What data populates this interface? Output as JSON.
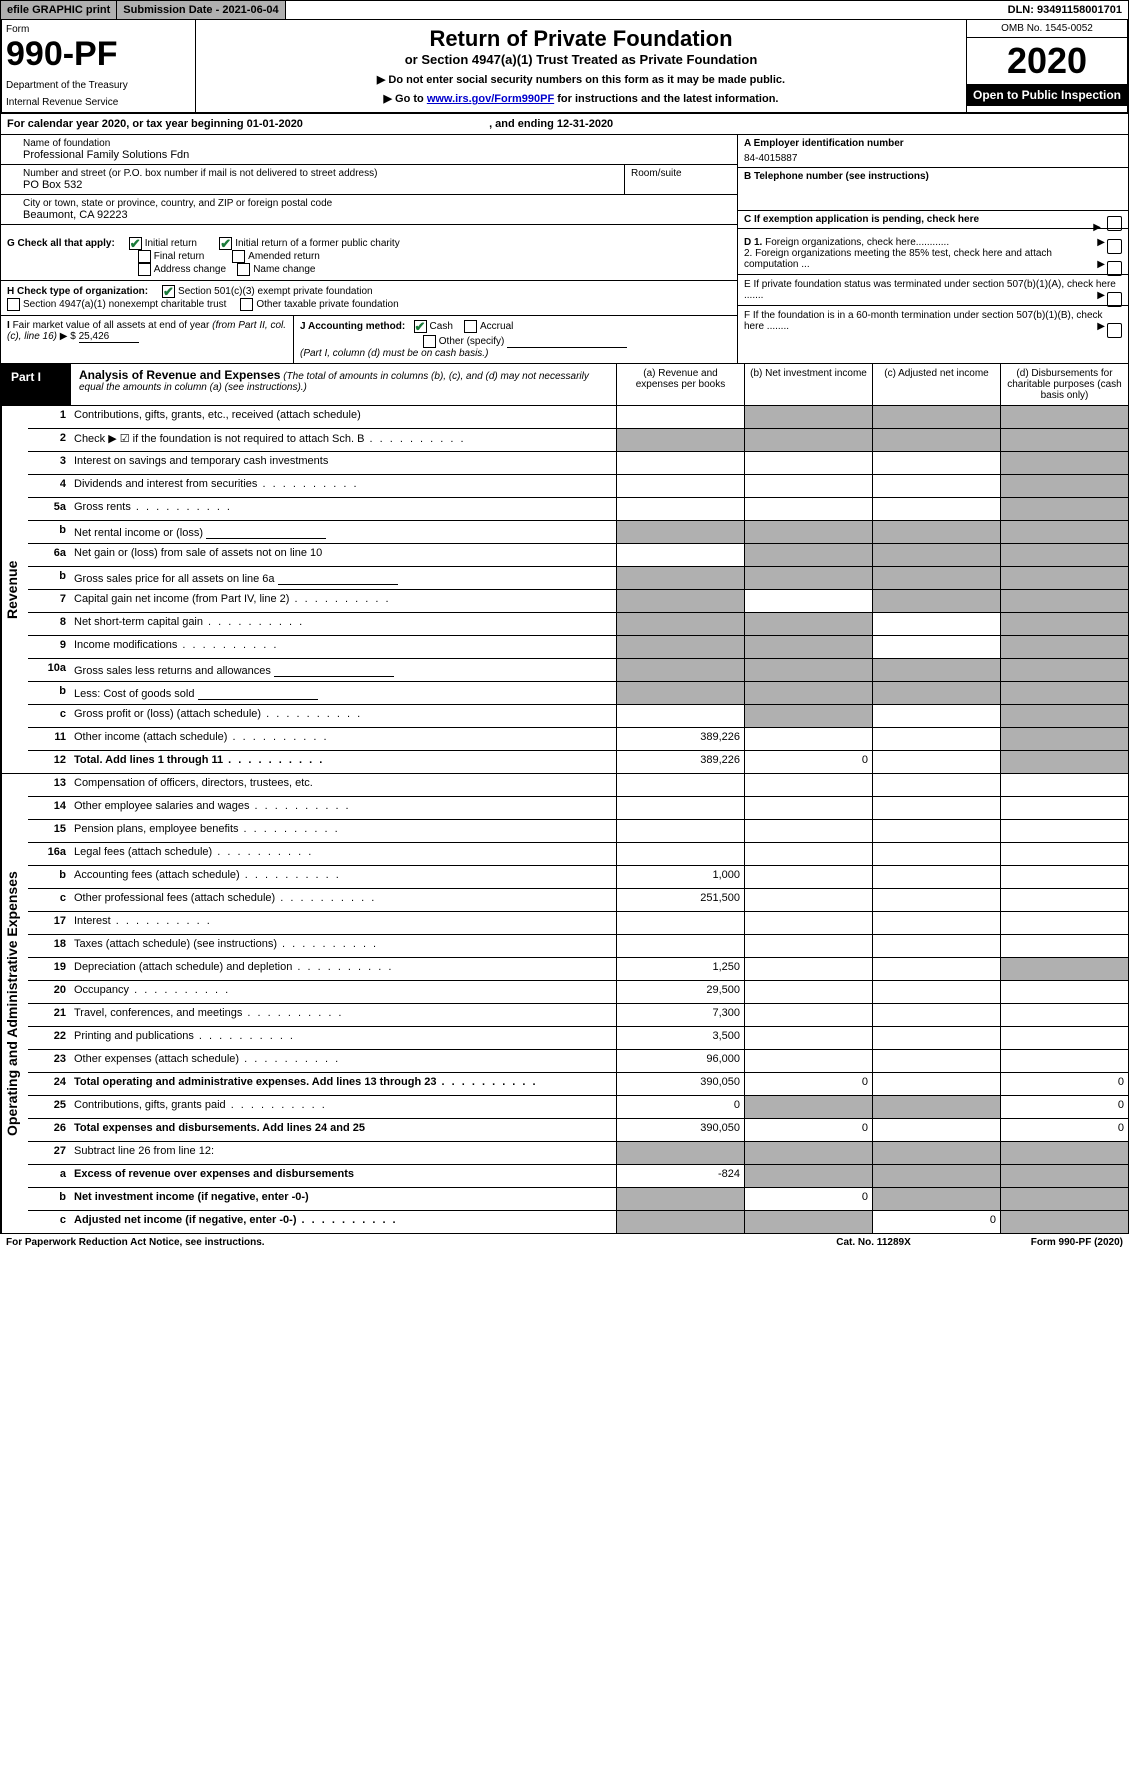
{
  "topbar": {
    "efile": "efile GRAPHIC print",
    "subdate_label": "Submission Date - ",
    "subdate": "2021-06-04",
    "dln_label": "DLN: ",
    "dln": "93491158001701"
  },
  "header": {
    "form_word": "Form",
    "form_number": "990-PF",
    "dept1": "Department of the Treasury",
    "dept2": "Internal Revenue Service",
    "title": "Return of Private Foundation",
    "subtitle": "or Section 4947(a)(1) Trust Treated as Private Foundation",
    "instr1": "▶ Do not enter social security numbers on this form as it may be made public.",
    "instr2_pre": "▶ Go to ",
    "instr2_link": "www.irs.gov/Form990PF",
    "instr2_post": " for instructions and the latest information.",
    "omb": "OMB No. 1545-0052",
    "year": "2020",
    "open": "Open to Public Inspection"
  },
  "calyear": {
    "text_pre": "For calendar year 2020, or tax year beginning ",
    "begin": "01-01-2020",
    "text_mid": " , and ending ",
    "end": "12-31-2020"
  },
  "entity": {
    "name_label": "Name of foundation",
    "name": "Professional Family Solutions Fdn",
    "addr_label": "Number and street (or P.O. box number if mail is not delivered to street address)",
    "room_label": "Room/suite",
    "addr": "PO Box 532",
    "city_label": "City or town, state or province, country, and ZIP or foreign postal code",
    "city": "Beaumont, CA  92223",
    "ein_label": "A Employer identification number",
    "ein": "84-4015887",
    "phone_label": "B Telephone number (see instructions)",
    "exempt_label": "C If exemption application is pending, check here"
  },
  "checks": {
    "g_label": "G Check all that apply:",
    "g_initial": "Initial return",
    "g_former": "Initial return of a former public charity",
    "g_final": "Final return",
    "g_amended": "Amended return",
    "g_addr": "Address change",
    "g_name": "Name change",
    "h_label": "H Check type of organization:",
    "h_501c3": "Section 501(c)(3) exempt private foundation",
    "h_4947": "Section 4947(a)(1) nonexempt charitable trust",
    "h_other": "Other taxable private foundation",
    "i_label": "I Fair market value of all assets at end of year (from Part II, col. (c), line 16) ▶ $",
    "i_value": "25,426",
    "j_label": "J Accounting method:",
    "j_cash": "Cash",
    "j_accrual": "Accrual",
    "j_other": "Other (specify)",
    "j_note": "(Part I, column (d) must be on cash basis.)",
    "d1": "D 1. Foreign organizations, check here............",
    "d2": "2. Foreign organizations meeting the 85% test, check here and attach computation ...",
    "e": "E  If private foundation status was terminated under section 507(b)(1)(A), check here .......",
    "f": "F  If the foundation is in a 60-month termination under section 507(b)(1)(B), check here ........"
  },
  "part1": {
    "label": "Part I",
    "title": "Analysis of Revenue and Expenses",
    "note": "(The total of amounts in columns (b), (c), and (d) may not necessarily equal the amounts in column (a) (see instructions).)",
    "col_a": "(a)   Revenue and expenses per books",
    "col_b": "(b)  Net investment income",
    "col_c": "(c)  Adjusted net income",
    "col_d": "(d)  Disbursements for charitable purposes (cash basis only)"
  },
  "side": {
    "revenue": "Revenue",
    "expenses": "Operating and Administrative Expenses"
  },
  "rows": [
    {
      "n": "1",
      "d": "Contributions, gifts, grants, etc., received (attach schedule)",
      "a": "",
      "b": "g",
      "c": "g",
      "dd": "g"
    },
    {
      "n": "2",
      "d": "Check ▶ ☑ if the foundation is not required to attach Sch. B",
      "dots": true,
      "a": "g",
      "b": "g",
      "c": "g",
      "dd": "g"
    },
    {
      "n": "3",
      "d": "Interest on savings and temporary cash investments",
      "a": "",
      "b": "",
      "c": "",
      "dd": "g"
    },
    {
      "n": "4",
      "d": "Dividends and interest from securities",
      "dots": true,
      "a": "",
      "b": "",
      "c": "",
      "dd": "g"
    },
    {
      "n": "5a",
      "d": "Gross rents",
      "dots": true,
      "a": "",
      "b": "",
      "c": "",
      "dd": "g"
    },
    {
      "n": "b",
      "d": "Net rental income or (loss)",
      "box": true,
      "a": "g",
      "b": "g",
      "c": "g",
      "dd": "g"
    },
    {
      "n": "6a",
      "d": "Net gain or (loss) from sale of assets not on line 10",
      "a": "",
      "b": "g",
      "c": "g",
      "dd": "g"
    },
    {
      "n": "b",
      "d": "Gross sales price for all assets on line 6a",
      "box": true,
      "a": "g",
      "b": "g",
      "c": "g",
      "dd": "g"
    },
    {
      "n": "7",
      "d": "Capital gain net income (from Part IV, line 2)",
      "dots": true,
      "a": "g",
      "b": "",
      "c": "g",
      "dd": "g"
    },
    {
      "n": "8",
      "d": "Net short-term capital gain",
      "dots": true,
      "a": "g",
      "b": "g",
      "c": "",
      "dd": "g"
    },
    {
      "n": "9",
      "d": "Income modifications",
      "dots": true,
      "a": "g",
      "b": "g",
      "c": "",
      "dd": "g"
    },
    {
      "n": "10a",
      "d": "Gross sales less returns and allowances",
      "box": true,
      "a": "g",
      "b": "g",
      "c": "g",
      "dd": "g"
    },
    {
      "n": "b",
      "d": "Less: Cost of goods sold",
      "dots": true,
      "box": true,
      "a": "g",
      "b": "g",
      "c": "g",
      "dd": "g"
    },
    {
      "n": "c",
      "d": "Gross profit or (loss) (attach schedule)",
      "dots": true,
      "a": "",
      "b": "g",
      "c": "",
      "dd": "g"
    },
    {
      "n": "11",
      "d": "Other income (attach schedule)",
      "dots": true,
      "a": "389,226",
      "b": "",
      "c": "",
      "dd": "g"
    },
    {
      "n": "12",
      "d": "Total. Add lines 1 through 11",
      "bold": true,
      "dots": true,
      "a": "389,226",
      "b": "0",
      "c": "",
      "dd": "g"
    }
  ],
  "exp_rows": [
    {
      "n": "13",
      "d": "Compensation of officers, directors, trustees, etc.",
      "a": "",
      "b": "",
      "c": "",
      "dd": ""
    },
    {
      "n": "14",
      "d": "Other employee salaries and wages",
      "dots": true,
      "a": "",
      "b": "",
      "c": "",
      "dd": ""
    },
    {
      "n": "15",
      "d": "Pension plans, employee benefits",
      "dots": true,
      "a": "",
      "b": "",
      "c": "",
      "dd": ""
    },
    {
      "n": "16a",
      "d": "Legal fees (attach schedule)",
      "dots": true,
      "a": "",
      "b": "",
      "c": "",
      "dd": ""
    },
    {
      "n": "b",
      "d": "Accounting fees (attach schedule)",
      "dots": true,
      "a": "1,000",
      "b": "",
      "c": "",
      "dd": ""
    },
    {
      "n": "c",
      "d": "Other professional fees (attach schedule)",
      "dots": true,
      "a": "251,500",
      "b": "",
      "c": "",
      "dd": ""
    },
    {
      "n": "17",
      "d": "Interest",
      "dots": true,
      "a": "",
      "b": "",
      "c": "",
      "dd": ""
    },
    {
      "n": "18",
      "d": "Taxes (attach schedule) (see instructions)",
      "dots": true,
      "a": "",
      "b": "",
      "c": "",
      "dd": ""
    },
    {
      "n": "19",
      "d": "Depreciation (attach schedule) and depletion",
      "dots": true,
      "a": "1,250",
      "b": "",
      "c": "",
      "dd": "g"
    },
    {
      "n": "20",
      "d": "Occupancy",
      "dots": true,
      "a": "29,500",
      "b": "",
      "c": "",
      "dd": ""
    },
    {
      "n": "21",
      "d": "Travel, conferences, and meetings",
      "dots": true,
      "a": "7,300",
      "b": "",
      "c": "",
      "dd": ""
    },
    {
      "n": "22",
      "d": "Printing and publications",
      "dots": true,
      "a": "3,500",
      "b": "",
      "c": "",
      "dd": ""
    },
    {
      "n": "23",
      "d": "Other expenses (attach schedule)",
      "dots": true,
      "a": "96,000",
      "b": "",
      "c": "",
      "dd": ""
    },
    {
      "n": "24",
      "d": "Total operating and administrative expenses. Add lines 13 through 23",
      "bold": true,
      "dots": true,
      "a": "390,050",
      "b": "0",
      "c": "",
      "dd": "0"
    },
    {
      "n": "25",
      "d": "Contributions, gifts, grants paid",
      "dots": true,
      "a": "0",
      "b": "g",
      "c": "g",
      "dd": "0"
    },
    {
      "n": "26",
      "d": "Total expenses and disbursements. Add lines 24 and 25",
      "bold": true,
      "a": "390,050",
      "b": "0",
      "c": "",
      "dd": "0"
    },
    {
      "n": "27",
      "d": "Subtract line 26 from line 12:",
      "a": "g",
      "b": "g",
      "c": "g",
      "dd": "g"
    },
    {
      "n": "a",
      "d": "Excess of revenue over expenses and disbursements",
      "bold": true,
      "a": "-824",
      "b": "g",
      "c": "g",
      "dd": "g"
    },
    {
      "n": "b",
      "d": "Net investment income (if negative, enter -0-)",
      "bold": true,
      "a": "g",
      "b": "0",
      "c": "g",
      "dd": "g"
    },
    {
      "n": "c",
      "d": "Adjusted net income (if negative, enter -0-)",
      "bold": true,
      "dots": true,
      "a": "g",
      "b": "g",
      "c": "0",
      "dd": "g"
    }
  ],
  "footer": {
    "left": "For Paperwork Reduction Act Notice, see instructions.",
    "mid": "Cat. No. 11289X",
    "right": "Form 990-PF (2020)"
  }
}
